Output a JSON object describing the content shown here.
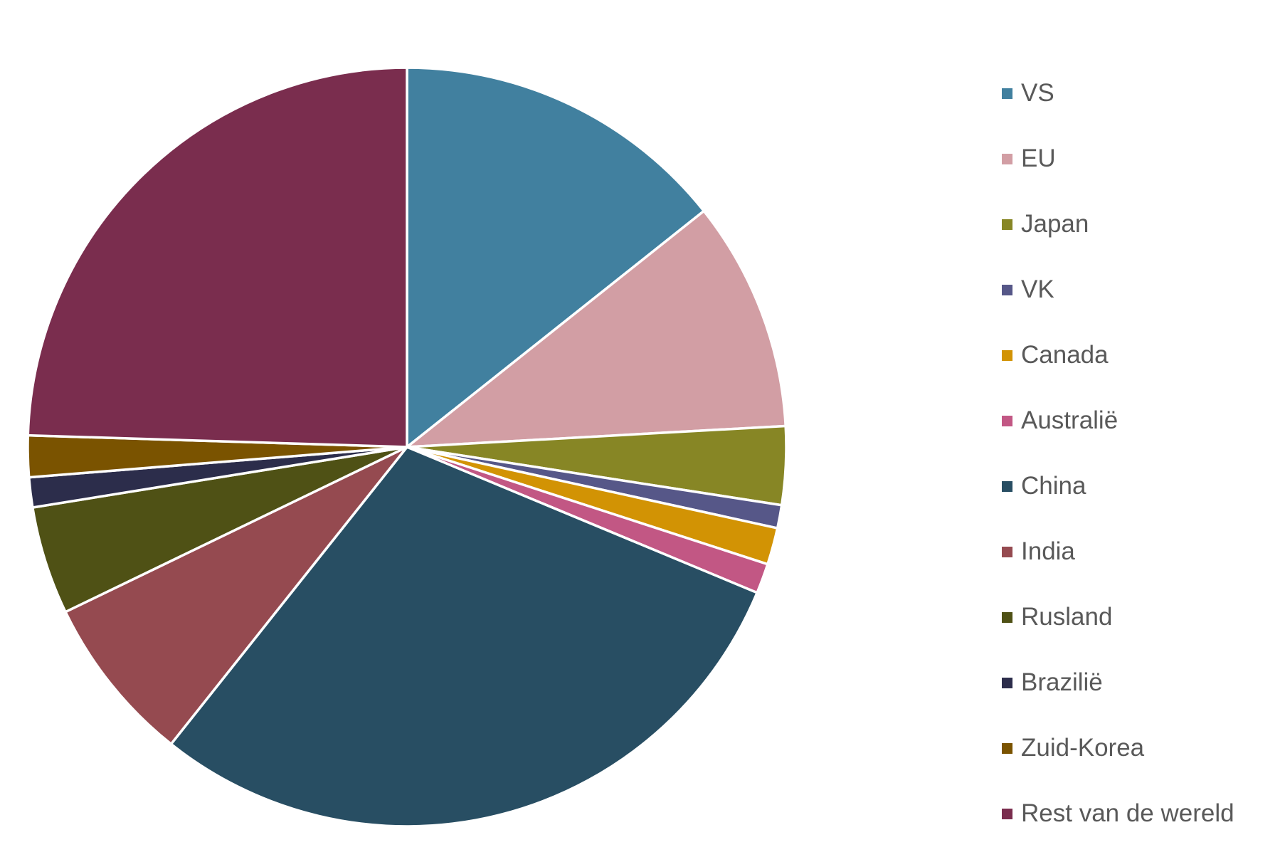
{
  "chart_data": {
    "type": "pie",
    "legend_position": "right",
    "start_angle_deg": 0,
    "direction": "clockwise",
    "slices": [
      {
        "label": "VS",
        "value": 14.6,
        "color": "#41809F"
      },
      {
        "label": "EU",
        "value": 10.0,
        "color": "#D29EA4"
      },
      {
        "label": "Japan",
        "value": 3.4,
        "color": "#878625"
      },
      {
        "label": "VK",
        "value": 1.0,
        "color": "#565788"
      },
      {
        "label": "Canada",
        "value": 1.6,
        "color": "#D29304"
      },
      {
        "label": "Australië",
        "value": 1.3,
        "color": "#C25784"
      },
      {
        "label": "China",
        "value": 30.0,
        "color": "#284E63"
      },
      {
        "label": "India",
        "value": 7.3,
        "color": "#954A50"
      },
      {
        "label": "Rusland",
        "value": 4.7,
        "color": "#4F5115"
      },
      {
        "label": "Brazilië",
        "value": 1.3,
        "color": "#2C2D4B"
      },
      {
        "label": "Zuid-Korea",
        "value": 1.8,
        "color": "#7A5300"
      },
      {
        "label": "Rest van de wereld",
        "value": 25.0,
        "color": "#7A2D4E"
      }
    ]
  }
}
